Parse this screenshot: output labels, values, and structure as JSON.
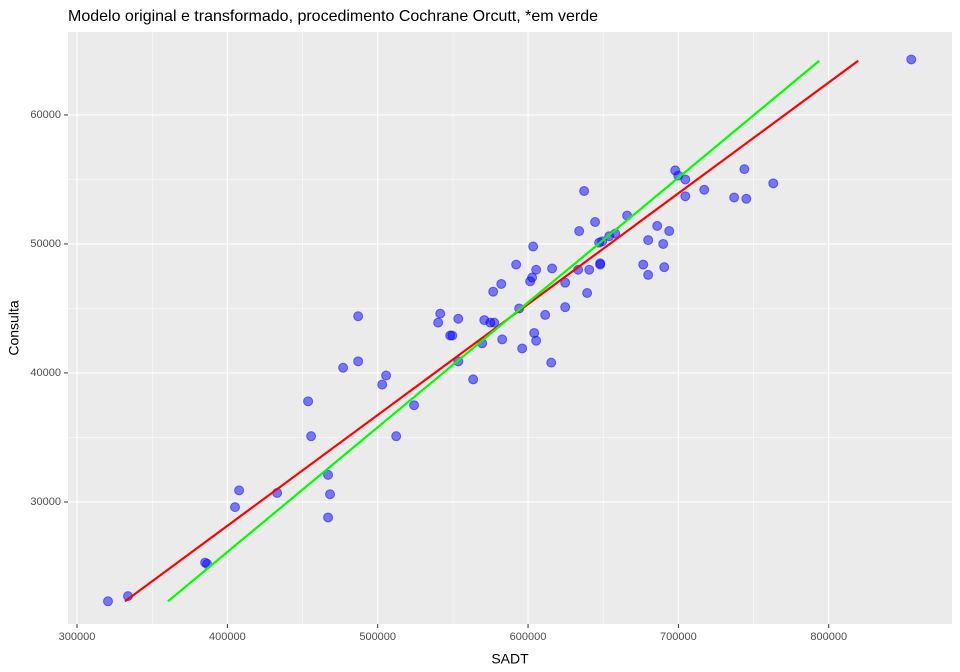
{
  "chart_data": {
    "type": "scatter",
    "title": "Modelo original e transformado, procedimento Cochrane Orcutt, *em verde",
    "x_label": "SADT",
    "y_label": "Consulta",
    "xlim": [
      294000,
      882000
    ],
    "ylim": [
      20540,
      66430
    ],
    "xticks": [
      300000,
      400000,
      500000,
      600000,
      700000,
      800000
    ],
    "yticks": [
      30000,
      40000,
      50000,
      60000
    ],
    "grid": true,
    "series": [
      {
        "color": "#0000ff",
        "mode": "points",
        "x": [
          320600,
          333900,
          385200,
          386500,
          405100,
          407800,
          433100,
          453700,
          455700,
          467000,
          467000,
          468300,
          477000,
          487000,
          487000,
          503000,
          505600,
          512300,
          524200,
          540200,
          541600,
          548200,
          549600,
          553600,
          553600,
          563500,
          570900,
          574900,
          577500,
          569500,
          576800,
          582200,
          582800,
          592100,
          594100,
          596100,
          601400,
          602700,
          604100,
          603400,
          605400,
          605400,
          611400,
          615400,
          616000,
          624700,
          624700,
          633300,
          634000,
          637300,
          639300,
          640700,
          644600,
          647300,
          648000,
          648000,
          649300,
          654000,
          658000,
          665900,
          676600,
          679900,
          679900,
          685900,
          689900,
          690600,
          693900,
          697900,
          699900,
          704600,
          704600,
          717200,
          737100,
          743900,
          745200,
          763100,
          854900
        ],
        "values": [
          22300,
          22700,
          25300,
          25200,
          29600,
          30900,
          30700,
          37800,
          35100,
          32100,
          28800,
          30600,
          40400,
          44400,
          40900,
          39100,
          39800,
          35100,
          37500,
          43900,
          44600,
          42900,
          42900,
          44200,
          40900,
          39500,
          44100,
          43900,
          43900,
          42300,
          46300,
          46900,
          42600,
          48400,
          45000,
          41900,
          47100,
          47400,
          43100,
          49800,
          48000,
          42500,
          44500,
          40800,
          48100,
          45100,
          47000,
          48000,
          51000,
          54100,
          46200,
          48000,
          51700,
          50100,
          48500,
          48400,
          50200,
          50600,
          50800,
          52200,
          48400,
          47600,
          50300,
          51400,
          50000,
          48200,
          51000,
          55700,
          55300,
          55000,
          53700,
          54200,
          53600,
          55800,
          53500,
          54700,
          64300
        ]
      },
      {
        "color": "#ff0000",
        "mode": "line",
        "x": [
          331900,
          819600
        ],
        "values": [
          22300,
          64200
        ]
      },
      {
        "color": "#00ff00",
        "mode": "line",
        "x": [
          360500,
          793700
        ],
        "values": [
          22300,
          64200
        ]
      }
    ]
  }
}
